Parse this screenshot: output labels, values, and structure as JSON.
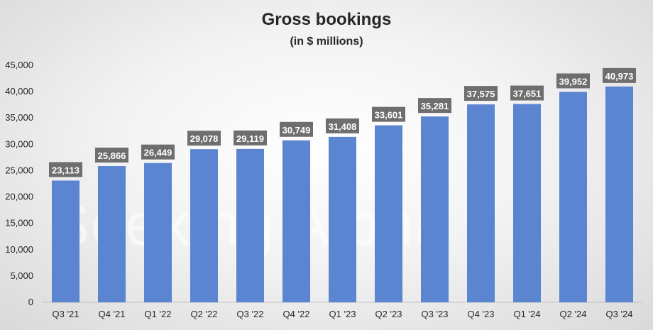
{
  "chart_data": {
    "type": "bar",
    "title": "Gross bookings",
    "subtitle": "(in $ millions)",
    "categories": [
      "Q3 '21",
      "Q4 '21",
      "Q1 '22",
      "Q2 '22",
      "Q3 '22",
      "Q4 '22",
      "Q1 '23",
      "Q2 '23",
      "Q3 '23",
      "Q4 '23",
      "Q1 '24",
      "Q2 '24",
      "Q3 '24"
    ],
    "values": [
      23113,
      25866,
      26449,
      29078,
      29119,
      30749,
      31408,
      33601,
      35281,
      37575,
      37651,
      39952,
      40973
    ],
    "data_labels": [
      "23,113",
      "25,866",
      "26,449",
      "29,078",
      "29,119",
      "30,749",
      "31,408",
      "33,601",
      "35,281",
      "37,575",
      "37,651",
      "39,952",
      "40,973"
    ],
    "ylim": [
      0,
      45000
    ],
    "yticks": [
      "0",
      "5,000",
      "10,000",
      "15,000",
      "20,000",
      "25,000",
      "30,000",
      "35,000",
      "40,000",
      "45,000"
    ],
    "grid": false,
    "legend": "none",
    "bar_color": "#5b84d1",
    "label_box_color": "#6e6e6e"
  },
  "watermark": "Seeking Alpha"
}
